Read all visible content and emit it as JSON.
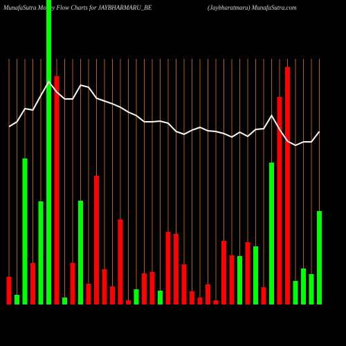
{
  "chart_data": {
    "type": "bar",
    "title": "MunafaSutra Money Flow Charts for JAYBHARMARU_BE",
    "subtitle": "(Jaybharatmaru) MunafaSutra.com",
    "categories": [
      null,
      null,
      null,
      null,
      null,
      null,
      null,
      null,
      null,
      null,
      null,
      null,
      null,
      null,
      null,
      null,
      null,
      null,
      null,
      null,
      null,
      null,
      null,
      null,
      null,
      null,
      null,
      null,
      null,
      null,
      null,
      null,
      null,
      null,
      null,
      null,
      null,
      null,
      null,
      null
    ],
    "values": [
      40,
      14,
      211,
      60,
      149,
      440,
      330,
      10,
      60,
      150,
      30,
      186,
      51,
      26,
      123,
      6,
      22,
      45,
      47,
      20,
      105,
      102,
      58,
      19,
      10,
      29,
      6,
      92,
      71,
      70,
      90,
      84,
      25,
      205,
      300,
      343,
      34,
      52,
      44,
      135
    ],
    "bar_colors": [
      "#ff0000",
      "#00ff00",
      "#00ff00",
      "#ff0000",
      "#00ff00",
      "#00ff00",
      "#ff0000",
      "#00ff00",
      "#ff0000",
      "#00ff00",
      "#ff0000",
      "#ff0000",
      "#ff0000",
      "#ff0000",
      "#ff0000",
      "#ff0000",
      "#00ff00",
      "#ff0000",
      "#ff0000",
      "#00ff00",
      "#ff0000",
      "#ff0000",
      "#ff0000",
      "#ff0000",
      "#ff0000",
      "#ff0000",
      "#ff0000",
      "#ff0000",
      "#ff0000",
      "#00ff00",
      "#ff0000",
      "#00ff00",
      "#ff0000",
      "#00ff00",
      "#ff0000",
      "#ff0000",
      "#00ff00",
      "#00ff00",
      "#00ff00",
      "#00ff00"
    ],
    "line": {
      "color": "#ffffff",
      "values": [
        257,
        264,
        283,
        281,
        302,
        322,
        307,
        297,
        297,
        317,
        314,
        298,
        294,
        290,
        285,
        278,
        273,
        264,
        264,
        265,
        262,
        250,
        246,
        252,
        256,
        251,
        250,
        247,
        242,
        249,
        243,
        253,
        254,
        273,
        253,
        236,
        230,
        235,
        235,
        250
      ]
    },
    "ylim": [
      0,
      440
    ],
    "grid_color": "#b8600b"
  }
}
